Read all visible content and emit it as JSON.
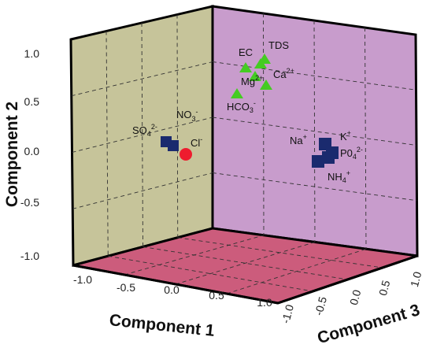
{
  "chart_data": {
    "type": "scatter3d",
    "title": "",
    "xlabel": "Component 1",
    "ylabel": "Component 2",
    "zlabel": "Component 3",
    "xlim": [
      -1.0,
      1.0
    ],
    "ylim": [
      -1.0,
      1.0
    ],
    "zlim": [
      -1.0,
      1.0
    ],
    "x_ticks": [
      "-1.0",
      "-0.5",
      "0.0",
      "0.5",
      "1.0"
    ],
    "y_ticks": [
      "1.0",
      "0.5",
      "0.0",
      "-0.5",
      "-1.0"
    ],
    "z_ticks": [
      "1.0",
      "0.5",
      "0.0",
      "-0.5",
      "-1.0"
    ],
    "grid": true,
    "wall_colors": {
      "left_wall": "#c6c49a",
      "back_wall": "#c89ccc",
      "floor": "#cc5c7c"
    },
    "series": [
      {
        "marker": "square",
        "color": "#1a2a6e",
        "points": [
          {
            "label": "SO4 2-",
            "x": -0.9,
            "y": 0.0,
            "z": 0.85
          },
          {
            "label": "NO3 -",
            "x": -0.82,
            "y": -0.02,
            "z": 0.85
          },
          {
            "label": "Na+",
            "x": 0.75,
            "y": 0.1,
            "z": -0.1
          },
          {
            "label": "K+",
            "x": 0.82,
            "y": 0.03,
            "z": -0.2
          },
          {
            "label": "PO4 2-",
            "x": 0.88,
            "y": -0.05,
            "z": -0.1
          },
          {
            "label": "NH4 +",
            "x": 0.73,
            "y": -0.12,
            "z": -0.12
          }
        ]
      },
      {
        "marker": "circle",
        "color": "#ee1c2e",
        "points": [
          {
            "label": "Cl-",
            "x": -0.7,
            "y": -0.08,
            "z": 0.85
          }
        ]
      },
      {
        "marker": "triangle",
        "color": "#44cc22",
        "points": [
          {
            "label": "EC",
            "x": 0.35,
            "y": 0.92,
            "z": 0.5
          },
          {
            "label": "TDS",
            "x": 0.55,
            "y": 0.98,
            "z": 0.5
          },
          {
            "label": "Ca2+",
            "x": 0.62,
            "y": 0.75,
            "z": 0.5
          },
          {
            "label": "Mg2+",
            "x": 0.49,
            "y": 0.86,
            "z": 0.5
          },
          {
            "label": "HCO3-",
            "x": 0.28,
            "y": 0.58,
            "z": 0.5
          }
        ]
      }
    ],
    "point_labels": {
      "so4": {
        "base": "SO",
        "sub": "4",
        "sup": "2-"
      },
      "no3": {
        "base": "NO",
        "sub": "3",
        "sup": "-"
      },
      "cl": {
        "base": "Cl",
        "sup": "-"
      },
      "ec": {
        "base": "EC"
      },
      "tds": {
        "base": "TDS"
      },
      "ca": {
        "base": "Ca",
        "sup": "2+"
      },
      "mg": {
        "base": "Mg",
        "sup": "2+"
      },
      "hco3": {
        "base": "HCO",
        "sub": "3",
        "sup": "-"
      },
      "na": {
        "base": "Na",
        "sup": "+"
      },
      "k": {
        "base": "K",
        "sup": "+"
      },
      "po4": {
        "base": "P0",
        "sub": "4",
        "sup": "2-"
      },
      "nh4": {
        "base": "NH",
        "sub": "4",
        "sup": "+"
      }
    }
  }
}
